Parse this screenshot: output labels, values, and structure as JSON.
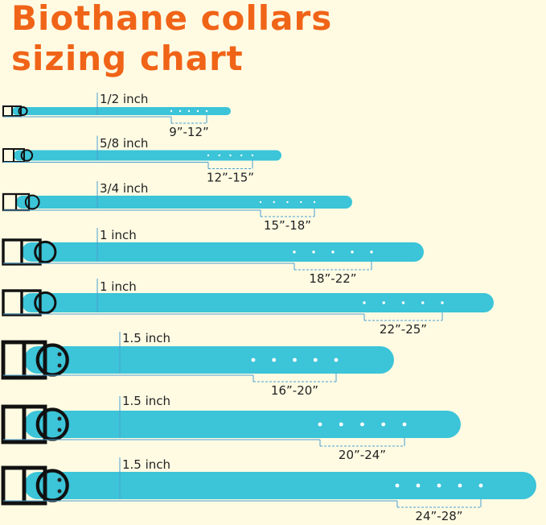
{
  "header": {
    "title_lines": [
      "Biothane collars",
      "sizing chart"
    ]
  },
  "collars": [
    {
      "width": "1/2 inch",
      "range": "9”-12”"
    },
    {
      "width": "5/8 inch",
      "range": "12”-15”"
    },
    {
      "width": "3/4 inch",
      "range": "15”-18”"
    },
    {
      "width": "1 inch",
      "range": "18”-22”"
    },
    {
      "width": "1 inch",
      "range": "22”-25”"
    },
    {
      "width": "1.5 inch",
      "range": "16”-20”"
    },
    {
      "width": "1.5 inch",
      "range": "20”-24”"
    },
    {
      "width": "1.5 inch",
      "range": "24”-28”"
    }
  ]
}
